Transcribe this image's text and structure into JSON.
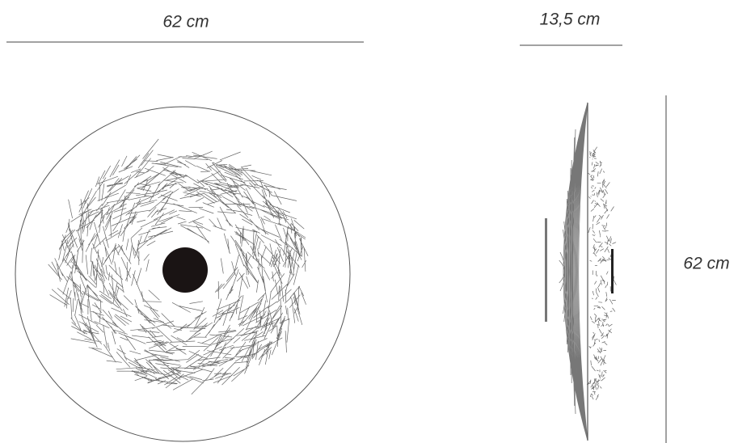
{
  "dimensions": {
    "front_width": "62 cm",
    "side_depth": "13,5 cm",
    "height": "62 cm"
  }
}
